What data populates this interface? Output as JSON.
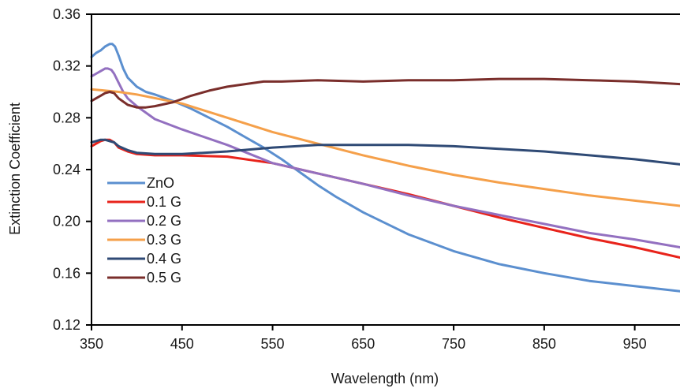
{
  "chart_data": {
    "type": "line",
    "title": "",
    "xlabel": "Wavelength (nm)",
    "ylabel": "Extinction Coefficient",
    "xlim": [
      350,
      1000
    ],
    "ylim": [
      0.12,
      0.36
    ],
    "xticks": [
      350,
      450,
      550,
      650,
      750,
      850,
      950
    ],
    "xtick_labels": [
      "350",
      "450",
      "550",
      "650",
      "750",
      "850",
      "950"
    ],
    "yticks": [
      0.12,
      0.16,
      0.2,
      0.24,
      0.28,
      0.32,
      0.36
    ],
    "ytick_labels": [
      "0.12",
      "0.16",
      "0.20",
      "0.24",
      "0.28",
      "0.32",
      "0.36"
    ],
    "grid": false,
    "legend_position": "left",
    "series": [
      {
        "name": "ZnO",
        "color": "#5B8FCF",
        "x": [
          350,
          355,
          360,
          365,
          370,
          373,
          376,
          380,
          385,
          390,
          400,
          410,
          420,
          440,
          460,
          480,
          500,
          520,
          540,
          560,
          580,
          600,
          620,
          650,
          700,
          750,
          800,
          850,
          900,
          950,
          1000
        ],
        "y": [
          0.327,
          0.33,
          0.332,
          0.335,
          0.337,
          0.337,
          0.335,
          0.328,
          0.318,
          0.311,
          0.304,
          0.3,
          0.298,
          0.293,
          0.287,
          0.28,
          0.273,
          0.265,
          0.257,
          0.248,
          0.238,
          0.228,
          0.219,
          0.207,
          0.19,
          0.177,
          0.167,
          0.16,
          0.154,
          0.15,
          0.146
        ]
      },
      {
        "name": "0.1 G",
        "color": "#E8231B",
        "x": [
          350,
          355,
          360,
          365,
          370,
          375,
          380,
          390,
          400,
          420,
          450,
          500,
          550,
          600,
          650,
          700,
          750,
          800,
          850,
          900,
          950,
          1000
        ],
        "y": [
          0.258,
          0.26,
          0.262,
          0.263,
          0.263,
          0.261,
          0.257,
          0.254,
          0.252,
          0.251,
          0.251,
          0.25,
          0.245,
          0.237,
          0.229,
          0.221,
          0.212,
          0.203,
          0.195,
          0.187,
          0.18,
          0.172
        ]
      },
      {
        "name": "0.2 G",
        "color": "#9370C0",
        "x": [
          350,
          355,
          360,
          365,
          368,
          372,
          375,
          380,
          385,
          390,
          400,
          420,
          450,
          500,
          550,
          600,
          650,
          700,
          750,
          800,
          850,
          900,
          950,
          1000
        ],
        "y": [
          0.312,
          0.314,
          0.316,
          0.318,
          0.318,
          0.317,
          0.314,
          0.307,
          0.3,
          0.295,
          0.289,
          0.279,
          0.271,
          0.259,
          0.245,
          0.237,
          0.229,
          0.22,
          0.212,
          0.205,
          0.198,
          0.191,
          0.186,
          0.18
        ]
      },
      {
        "name": "0.3 G",
        "color": "#F5A04A",
        "x": [
          350,
          380,
          400,
          450,
          500,
          550,
          600,
          650,
          700,
          750,
          800,
          850,
          900,
          950,
          1000
        ],
        "y": [
          0.302,
          0.3,
          0.298,
          0.291,
          0.28,
          0.269,
          0.26,
          0.251,
          0.243,
          0.236,
          0.23,
          0.225,
          0.22,
          0.216,
          0.212
        ]
      },
      {
        "name": "0.4 G",
        "color": "#2F4A75",
        "x": [
          350,
          355,
          360,
          365,
          370,
          375,
          380,
          390,
          400,
          420,
          450,
          500,
          550,
          600,
          650,
          700,
          750,
          800,
          850,
          900,
          950,
          1000
        ],
        "y": [
          0.261,
          0.262,
          0.263,
          0.263,
          0.262,
          0.261,
          0.258,
          0.255,
          0.253,
          0.252,
          0.252,
          0.254,
          0.257,
          0.259,
          0.259,
          0.259,
          0.258,
          0.256,
          0.254,
          0.251,
          0.248,
          0.244
        ]
      },
      {
        "name": "0.5 G",
        "color": "#7A2E2B",
        "x": [
          350,
          355,
          360,
          365,
          370,
          375,
          380,
          390,
          400,
          410,
          420,
          440,
          460,
          480,
          500,
          520,
          540,
          560,
          600,
          650,
          700,
          750,
          800,
          850,
          900,
          950,
          1000
        ],
        "y": [
          0.293,
          0.295,
          0.297,
          0.299,
          0.3,
          0.299,
          0.295,
          0.29,
          0.288,
          0.288,
          0.289,
          0.292,
          0.297,
          0.301,
          0.304,
          0.306,
          0.308,
          0.308,
          0.309,
          0.308,
          0.309,
          0.309,
          0.31,
          0.31,
          0.309,
          0.308,
          0.306
        ]
      }
    ]
  }
}
